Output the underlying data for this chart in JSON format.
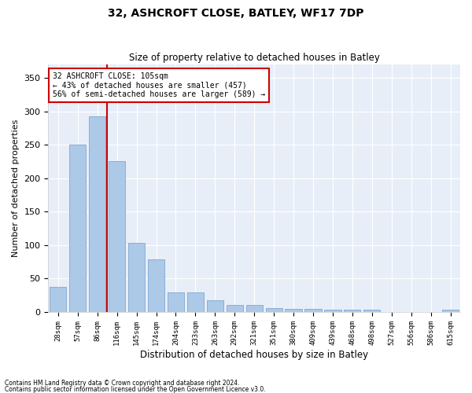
{
  "title": "32, ASHCROFT CLOSE, BATLEY, WF17 7DP",
  "subtitle": "Size of property relative to detached houses in Batley",
  "xlabel": "Distribution of detached houses by size in Batley",
  "ylabel": "Number of detached properties",
  "bar_labels": [
    "28sqm",
    "57sqm",
    "86sqm",
    "116sqm",
    "145sqm",
    "174sqm",
    "204sqm",
    "233sqm",
    "263sqm",
    "292sqm",
    "321sqm",
    "351sqm",
    "380sqm",
    "409sqm",
    "439sqm",
    "468sqm",
    "498sqm",
    "527sqm",
    "556sqm",
    "586sqm",
    "615sqm"
  ],
  "bar_values": [
    38,
    250,
    293,
    225,
    103,
    79,
    29,
    29,
    18,
    10,
    10,
    6,
    5,
    5,
    3,
    4,
    3,
    0,
    0,
    0,
    3
  ],
  "bar_color": "#adc9e8",
  "bar_edge_color": "#88afd4",
  "background_color": "#e8eef8",
  "grid_color": "#ffffff",
  "vline_color": "#cc0000",
  "annotation_title": "32 ASHCROFT CLOSE: 105sqm",
  "annotation_line1": "← 43% of detached houses are smaller (457)",
  "annotation_line2": "56% of semi-detached houses are larger (589) →",
  "annotation_box_color": "#ffffff",
  "annotation_box_edge": "#cc0000",
  "ylim": [
    0,
    370
  ],
  "yticks": [
    0,
    50,
    100,
    150,
    200,
    250,
    300,
    350
  ],
  "footer1": "Contains HM Land Registry data © Crown copyright and database right 2024.",
  "footer2": "Contains public sector information licensed under the Open Government Licence v3.0."
}
